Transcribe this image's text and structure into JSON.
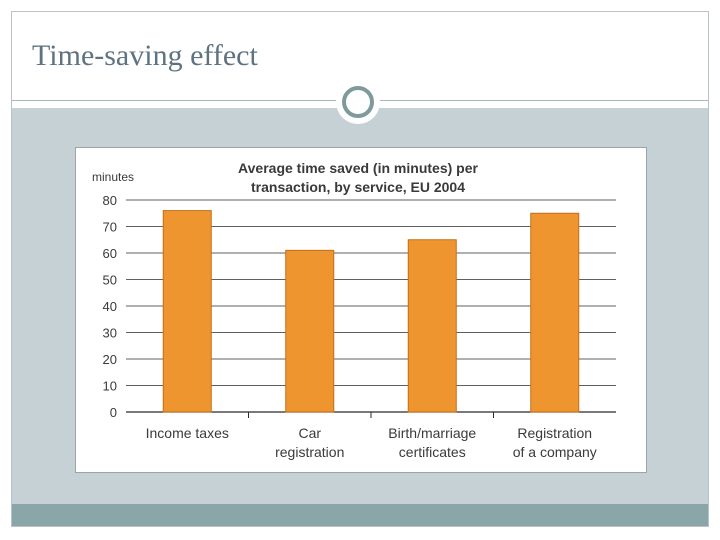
{
  "slide": {
    "title": "Time-saving effect"
  },
  "colors": {
    "bar": "#ee9530",
    "bar_outline": "#c46f16",
    "gridline": "#2b2b2b",
    "text": "#3a3a3a",
    "band": "#c6d1d6",
    "footer": "#8aa6a9"
  },
  "chart_data": {
    "type": "bar",
    "title_line1": "Average time saved (in minutes) per",
    "title_line2": "transaction, by service, EU 2004",
    "ylabel": "minutes",
    "xlabel": "",
    "ylim": [
      0,
      80
    ],
    "yticks": [
      0,
      10,
      20,
      30,
      40,
      50,
      60,
      70,
      80
    ],
    "categories": [
      [
        "Income taxes"
      ],
      [
        "Car",
        "registration"
      ],
      [
        "Birth/marriage",
        "certificates"
      ],
      [
        "Registration",
        "of a company"
      ]
    ],
    "values": [
      76,
      61,
      65,
      75
    ],
    "grid": true
  }
}
